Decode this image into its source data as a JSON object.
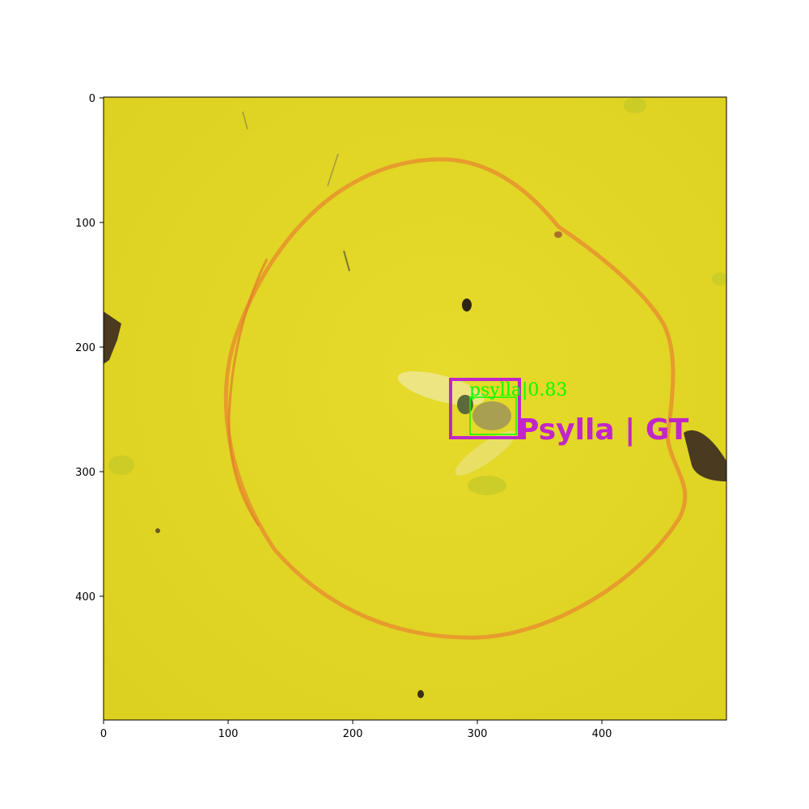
{
  "axes": {
    "x_ticks": [
      "0",
      "100",
      "200",
      "300",
      "400"
    ],
    "y_ticks": [
      "0",
      "100",
      "200",
      "300",
      "400"
    ],
    "x_range": [
      0,
      500
    ],
    "y_range": [
      0,
      500
    ],
    "y_inverted": true
  },
  "image": {
    "background": "sticky yellow trap with insects and an orange ring",
    "colors": {
      "trap": "#e0d523",
      "ring": "#e8922e",
      "insect": "#4a3a20"
    }
  },
  "annotations": {
    "prediction": {
      "label": "psylla",
      "score": "0.83",
      "text": "psylla|0.83",
      "color": "#00ff00"
    },
    "ground_truth": {
      "text": "Psylla | GT",
      "color": "#c026c8"
    }
  }
}
